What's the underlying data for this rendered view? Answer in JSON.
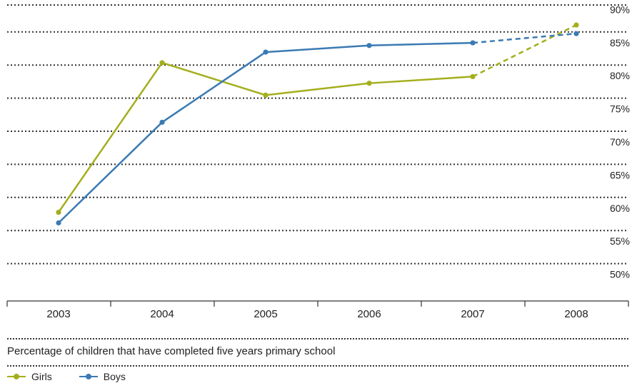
{
  "chart_data": {
    "type": "line",
    "title": "",
    "xlabel": "",
    "ylabel": "",
    "categories": [
      "2003",
      "2004",
      "2005",
      "2006",
      "2007",
      "2008"
    ],
    "y_ticks": [
      "90%",
      "85%",
      "80%",
      "75%",
      "70%",
      "65%",
      "60%",
      "55%",
      "50%"
    ],
    "ylim": [
      45,
      92.5
    ],
    "grid": true,
    "grid_style": "dotted",
    "y_axis_position": "right",
    "legend_position": "bottom-left",
    "series": [
      {
        "name": "Girls",
        "color": "#a4ae1c",
        "values": [
          58.4,
          81.0,
          76.1,
          77.9,
          78.9,
          86.7
        ],
        "projected_from_index": 4
      },
      {
        "name": "Boys",
        "color": "#3a7ab3",
        "values": [
          56.8,
          72.0,
          82.6,
          83.6,
          84.0,
          85.4
        ],
        "projected_from_index": 4
      }
    ]
  },
  "caption": "Percentage of children that have completed five years primary school",
  "legend": {
    "girls_label": "Girls",
    "boys_label": "Boys"
  }
}
